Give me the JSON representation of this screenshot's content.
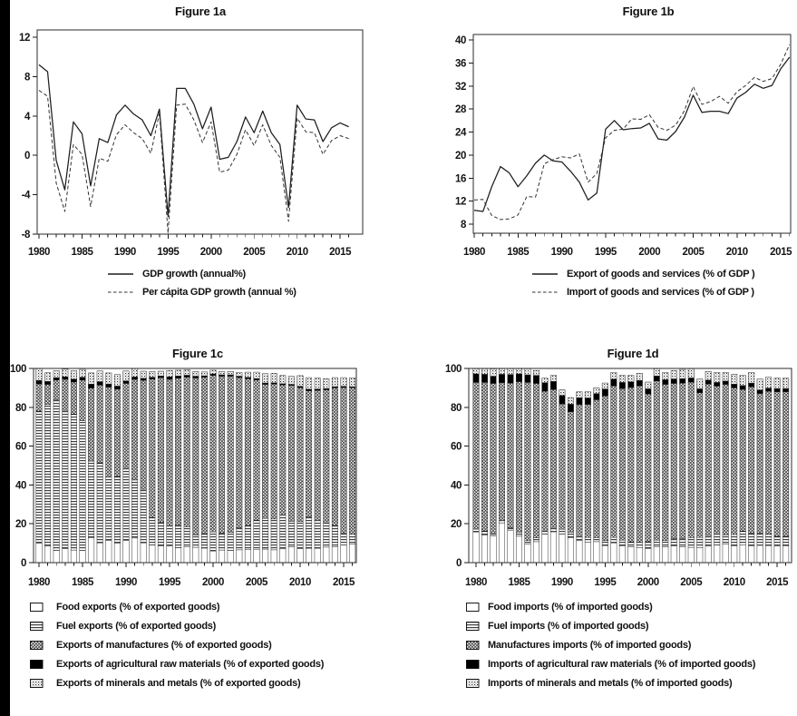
{
  "page": {
    "background": "#ffffff",
    "left_edge_bar_color": "#000000",
    "ink_color": "#1a1a1a"
  },
  "chart_data": [
    {
      "id": "figure-1a",
      "type": "line",
      "title": "Figure 1a",
      "x_start": 1980,
      "x_end": 2016,
      "x_tick_labels": [
        "1980",
        "1985",
        "1990",
        "1995",
        "2000",
        "2005",
        "2010",
        "2015"
      ],
      "ylim": [
        -8,
        12
      ],
      "y_ticks": [
        12,
        8,
        4,
        0,
        -4,
        -8
      ],
      "grid": false,
      "legend_position": "below",
      "series": [
        {
          "name": "GDP growth (annual%)",
          "style": "solid",
          "values": [
            9.2,
            8.5,
            -0.5,
            -3.5,
            3.4,
            2.2,
            -3.1,
            1.7,
            1.3,
            4.1,
            5.1,
            4.2,
            3.6,
            2.0,
            4.7,
            -6.2,
            6.8,
            6.8,
            5.2,
            2.7,
            4.9,
            -0.4,
            -0.2,
            1.4,
            3.9,
            2.3,
            4.5,
            2.3,
            1.1,
            -5.3,
            5.1,
            3.7,
            3.6,
            1.4,
            2.8,
            3.3,
            2.9
          ]
        },
        {
          "name": "Per cápita GDP growth (annual %)",
          "style": "dashed",
          "values": [
            6.6,
            6.0,
            -2.8,
            -5.7,
            1.1,
            0.1,
            -5.2,
            -0.3,
            -0.6,
            2.1,
            3.1,
            2.3,
            1.7,
            0.2,
            4.3,
            -7.9,
            5.1,
            5.2,
            3.6,
            1.3,
            3.4,
            -1.7,
            -1.5,
            0.1,
            2.6,
            1.0,
            3.1,
            1.0,
            -0.2,
            -6.7,
            3.8,
            2.4,
            2.3,
            0.1,
            1.5,
            2.0,
            1.7
          ]
        }
      ]
    },
    {
      "id": "figure-1b",
      "type": "line",
      "title": "Figure 1b",
      "x_start": 1980,
      "x_end": 2016,
      "x_tick_labels": [
        "1980",
        "1985",
        "1990",
        "1995",
        "2000",
        "2005",
        "2010",
        "2015"
      ],
      "ylim": [
        8,
        40
      ],
      "y_ticks": [
        40,
        36,
        32,
        28,
        24,
        20,
        16,
        12,
        8
      ],
      "grid": false,
      "legend_position": "below",
      "series": [
        {
          "name": "Export of goods and services (% of GDP )",
          "style": "solid",
          "values": [
            10.4,
            10.2,
            14.5,
            18.0,
            16.9,
            14.5,
            16.4,
            18.6,
            20.0,
            19.0,
            18.8,
            17.2,
            15.3,
            12.2,
            13.4,
            24.5,
            26.0,
            24.4,
            24.6,
            24.7,
            25.5,
            22.8,
            22.6,
            24.1,
            26.6,
            30.4,
            27.4,
            27.6,
            27.6,
            27.2,
            29.9,
            30.9,
            32.3,
            31.6,
            32.1,
            35.0,
            37.0
          ]
        },
        {
          "name": "Import of goods and services  (% of GDP )",
          "style": "dashed",
          "values": [
            12.2,
            12.3,
            9.5,
            8.8,
            8.9,
            9.6,
            12.8,
            12.7,
            18.5,
            19.2,
            19.7,
            19.5,
            20.2,
            15.3,
            16.8,
            23.0,
            24.3,
            24.5,
            26.3,
            26.2,
            27.0,
            24.8,
            24.3,
            25.2,
            27.7,
            31.9,
            28.8,
            29.3,
            30.2,
            29.0,
            31.0,
            32.1,
            33.5,
            32.8,
            33.3,
            35.8,
            39.2
          ]
        }
      ]
    },
    {
      "id": "figure-1c",
      "type": "stacked-bar",
      "title": "Figure 1c",
      "x_start": 1980,
      "x_end": 2016,
      "x_tick_labels": [
        "1980",
        "1985",
        "1990",
        "1995",
        "2000",
        "2005",
        "2010",
        "2015"
      ],
      "ylim": [
        0,
        100
      ],
      "y_ticks": [
        100,
        80,
        60,
        40,
        20,
        0
      ],
      "grid": false,
      "legend_position": "below",
      "series": [
        {
          "name": "Food exports (% of exported goods)",
          "pattern": "white",
          "values": [
            10.0,
            8.5,
            6.3,
            7.2,
            6.5,
            6.3,
            12.9,
            10.2,
            11.5,
            10.1,
            11.4,
            12.7,
            10.2,
            9.0,
            8.6,
            8.5,
            7.6,
            8.1,
            7.9,
            7.5,
            6.0,
            6.5,
            6.3,
            6.6,
            6.7,
            6.9,
            7.0,
            6.6,
            7.1,
            8.2,
            7.2,
            7.4,
            7.4,
            8.0,
            8.1,
            9.1,
            9.5
          ]
        },
        {
          "name": "Fuel exports (% of exported goods)",
          "pattern": "hlines",
          "values": [
            68.0,
            72.9,
            77.6,
            71.2,
            70.0,
            66.7,
            39.4,
            41.2,
            32.6,
            34.3,
            37.6,
            29.9,
            27.6,
            14.2,
            12.1,
            10.4,
            11.8,
            10.4,
            6.3,
            7.3,
            9.8,
            8.6,
            9.3,
            11.3,
            12.3,
            14.9,
            15.8,
            15.9,
            17.4,
            13.1,
            13.9,
            16.1,
            14.3,
            13.0,
            10.9,
            6.1,
            5.1
          ]
        },
        {
          "name": "Exports of manufactures (% of exported goods)",
          "pattern": "crosshatch",
          "values": [
            14.0,
            10.4,
            10.1,
            16.0,
            16.5,
            21.0,
            37.6,
            40.0,
            46.3,
            45.0,
            43.3,
            51.8,
            56.0,
            71.3,
            74.5,
            75.5,
            75.6,
            77.0,
            80.9,
            80.6,
            80.6,
            80.9,
            80.4,
            77.4,
            75.7,
            72.3,
            69.0,
            69.5,
            67.0,
            70.0,
            69.0,
            65.0,
            67.0,
            68.0,
            71.0,
            75.0,
            75.5
          ]
        },
        {
          "name": "Exports of agricultural raw materials (% of exported goods)",
          "pattern": "black",
          "values": [
            1.8,
            1.5,
            1.2,
            1.3,
            1.5,
            1.5,
            2.0,
            1.8,
            1.6,
            1.5,
            1.3,
            1.2,
            1.1,
            1.0,
            0.9,
            1.3,
            1.1,
            1.0,
            0.9,
            0.8,
            0.8,
            0.7,
            0.7,
            0.7,
            0.7,
            0.7,
            0.7,
            0.6,
            0.6,
            0.5,
            0.7,
            0.8,
            0.7,
            0.6,
            0.6,
            0.6,
            0.5
          ]
        },
        {
          "name": "Exports of minerals and metals (% of exported goods)",
          "pattern": "dots",
          "values": [
            6.2,
            4.5,
            3.6,
            4.0,
            4.3,
            4.0,
            5.8,
            5.5,
            5.7,
            6.0,
            5.1,
            4.3,
            3.7,
            2.9,
            2.5,
            3.3,
            3.0,
            2.9,
            2.4,
            2.0,
            1.9,
            1.7,
            1.8,
            2.0,
            2.7,
            3.3,
            4.8,
            4.9,
            4.3,
            4.1,
            5.5,
            6.0,
            5.6,
            5.1,
            4.7,
            4.5,
            4.6
          ]
        }
      ]
    },
    {
      "id": "figure-1d",
      "type": "stacked-bar",
      "title": "Figure 1d",
      "x_start": 1980,
      "x_end": 2016,
      "x_tick_labels": [
        "1980",
        "1985",
        "1990",
        "1995",
        "2000",
        "2005",
        "2010",
        "2015"
      ],
      "ylim": [
        0,
        100
      ],
      "y_ticks": [
        100,
        80,
        60,
        40,
        20,
        0
      ],
      "grid": false,
      "legend_position": "below",
      "series": [
        {
          "name": "Food imports (% of imported goods)",
          "pattern": "white",
          "values": [
            15.8,
            14.3,
            13.8,
            20.5,
            16.5,
            13.6,
            9.5,
            10.8,
            14.6,
            15.9,
            14.7,
            12.9,
            11.3,
            10.6,
            10.8,
            8.8,
            10.2,
            8.7,
            8.2,
            7.8,
            7.3,
            8.3,
            8.2,
            8.6,
            8.2,
            7.9,
            7.8,
            8.5,
            9.0,
            9.5,
            8.7,
            9.2,
            8.7,
            8.9,
            8.8,
            8.5,
            8.7
          ]
        },
        {
          "name": "Fuel imports (% of imported goods)",
          "pattern": "hlines",
          "values": [
            1.5,
            2.0,
            1.5,
            1.2,
            1.4,
            2.1,
            1.8,
            2.0,
            2.1,
            2.2,
            2.5,
            2.8,
            2.6,
            2.4,
            2.1,
            2.5,
            2.8,
            2.9,
            2.5,
            2.7,
            3.5,
            3.3,
            3.1,
            3.7,
            4.2,
            5.0,
            5.2,
            5.5,
            6.4,
            4.8,
            5.8,
            7.0,
            6.3,
            6.2,
            5.9,
            5.0,
            4.7
          ]
        },
        {
          "name": "Manufactures imports (% of imported goods)",
          "pattern": "crosshatch",
          "values": [
            75.5,
            76.5,
            77.0,
            71.0,
            74.5,
            77.5,
            81.5,
            79.5,
            71.5,
            71.0,
            64.5,
            62.0,
            67.5,
            68.5,
            71.0,
            74.5,
            78.0,
            78.0,
            79.5,
            80.5,
            76.0,
            82.0,
            80.5,
            80.0,
            80.0,
            80.0,
            74.5,
            78.0,
            75.5,
            77.5,
            75.5,
            73.0,
            75.5,
            72.0,
            73.5,
            74.5,
            74.6
          ]
        },
        {
          "name": "Imports of agricultural raw materials (% of imported goods)",
          "pattern": "black",
          "values": [
            4.4,
            4.2,
            3.7,
            4.3,
            4.5,
            4.0,
            3.9,
            4.1,
            4.5,
            4.2,
            4.4,
            3.9,
            3.5,
            3.3,
            3.2,
            3.6,
            3.5,
            3.2,
            2.9,
            2.8,
            2.7,
            2.5,
            2.4,
            2.3,
            2.3,
            2.2,
            2.0,
            2.0,
            1.9,
            1.7,
            1.9,
            2.0,
            1.9,
            1.8,
            1.7,
            1.6,
            1.6
          ]
        },
        {
          "name": "Imports of minerals and metals (% of imported goods)",
          "pattern": "dots",
          "values": [
            2.8,
            3.0,
            3.8,
            3.0,
            3.1,
            2.8,
            3.3,
            2.6,
            2.3,
            3.2,
            2.9,
            3.4,
            3.1,
            3.2,
            2.9,
            3.1,
            3.5,
            3.7,
            3.4,
            3.7,
            3.5,
            3.9,
            3.8,
            4.4,
            4.8,
            4.9,
            5.0,
            4.5,
            5.2,
            4.5,
            5.1,
            5.3,
            5.6,
            5.6,
            5.6,
            5.4,
            5.4
          ]
        }
      ]
    }
  ]
}
